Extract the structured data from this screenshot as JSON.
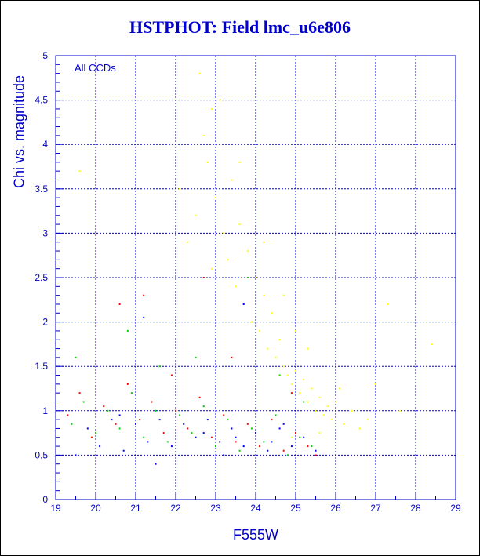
{
  "chart_data": {
    "type": "scatter",
    "title": "HSTPHOT: Field lmc_u6e806",
    "xlabel": "F555W",
    "ylabel": "Chi vs. magnitude",
    "annotation": "All CCDs",
    "xlim": [
      19,
      29
    ],
    "ylim": [
      0,
      5
    ],
    "x_ticks": [
      "19",
      "20",
      "21",
      "22",
      "23",
      "24",
      "25",
      "26",
      "27",
      "28",
      "29"
    ],
    "y_ticks": [
      "0",
      "0.5",
      "1",
      "1.5",
      "2",
      "2.5",
      "3",
      "3.5",
      "4",
      "4.5",
      "5"
    ],
    "grid": true,
    "colors": {
      "frame": "#0000cc",
      "ccd1_points": "#ffff00",
      "ccd2_points": "#ff0000",
      "ccd3_points": "#00cc00",
      "ccd4_points": "#0000ff"
    },
    "series": [
      {
        "color": "#ffff00",
        "values": [
          {
            "x": 22.1,
            "y": 3.5
          },
          {
            "x": 22.3,
            "y": 2.9
          },
          {
            "x": 22.5,
            "y": 3.2
          },
          {
            "x": 22.6,
            "y": 4.8
          },
          {
            "x": 22.7,
            "y": 4.1
          },
          {
            "x": 22.8,
            "y": 3.8
          },
          {
            "x": 22.9,
            "y": 2.6
          },
          {
            "x": 23.0,
            "y": 3.4
          },
          {
            "x": 23.1,
            "y": 4.5
          },
          {
            "x": 23.2,
            "y": 3.0
          },
          {
            "x": 23.3,
            "y": 2.7
          },
          {
            "x": 23.4,
            "y": 3.6
          },
          {
            "x": 23.5,
            "y": 2.4
          },
          {
            "x": 23.6,
            "y": 3.1
          },
          {
            "x": 23.7,
            "y": 2.2
          },
          {
            "x": 23.8,
            "y": 2.8
          },
          {
            "x": 23.9,
            "y": 2.0
          },
          {
            "x": 24.0,
            "y": 2.5
          },
          {
            "x": 24.1,
            "y": 1.9
          },
          {
            "x": 24.2,
            "y": 2.3
          },
          {
            "x": 24.3,
            "y": 1.7
          },
          {
            "x": 24.4,
            "y": 2.1
          },
          {
            "x": 24.5,
            "y": 1.6
          },
          {
            "x": 24.6,
            "y": 1.8
          },
          {
            "x": 24.7,
            "y": 1.5
          },
          {
            "x": 24.8,
            "y": 1.4
          },
          {
            "x": 24.9,
            "y": 1.3
          },
          {
            "x": 25.0,
            "y": 1.45
          },
          {
            "x": 25.1,
            "y": 1.2
          },
          {
            "x": 25.2,
            "y": 1.35
          },
          {
            "x": 25.3,
            "y": 1.1
          },
          {
            "x": 25.4,
            "y": 1.25
          },
          {
            "x": 25.5,
            "y": 1.0
          },
          {
            "x": 25.6,
            "y": 1.15
          },
          {
            "x": 25.7,
            "y": 0.95
          },
          {
            "x": 25.8,
            "y": 1.05
          },
          {
            "x": 25.9,
            "y": 0.9
          },
          {
            "x": 26.0,
            "y": 1.1
          },
          {
            "x": 26.2,
            "y": 0.85
          },
          {
            "x": 26.4,
            "y": 1.0
          },
          {
            "x": 26.6,
            "y": 0.8
          },
          {
            "x": 26.8,
            "y": 0.9
          },
          {
            "x": 27.0,
            "y": 1.3
          },
          {
            "x": 27.3,
            "y": 2.2
          },
          {
            "x": 27.6,
            "y": 1.0
          },
          {
            "x": 24.2,
            "y": 2.9
          },
          {
            "x": 23.6,
            "y": 3.8
          },
          {
            "x": 22.9,
            "y": 4.4
          },
          {
            "x": 24.7,
            "y": 2.3
          },
          {
            "x": 25.3,
            "y": 1.7
          },
          {
            "x": 19.6,
            "y": 3.7
          },
          {
            "x": 28.4,
            "y": 1.75
          },
          {
            "x": 25.6,
            "y": 0.75
          },
          {
            "x": 24.9,
            "y": 0.7
          },
          {
            "x": 26.1,
            "y": 1.25
          },
          {
            "x": 25.0,
            "y": 1.9
          }
        ]
      },
      {
        "color": "#ff0000",
        "values": [
          {
            "x": 19.3,
            "y": 0.95
          },
          {
            "x": 19.6,
            "y": 1.2
          },
          {
            "x": 19.9,
            "y": 0.7
          },
          {
            "x": 20.2,
            "y": 1.05
          },
          {
            "x": 20.5,
            "y": 0.85
          },
          {
            "x": 20.8,
            "y": 1.3
          },
          {
            "x": 21.1,
            "y": 0.9
          },
          {
            "x": 21.4,
            "y": 1.1
          },
          {
            "x": 21.7,
            "y": 0.75
          },
          {
            "x": 22.0,
            "y": 1.0
          },
          {
            "x": 22.3,
            "y": 0.8
          },
          {
            "x": 22.6,
            "y": 1.15
          },
          {
            "x": 22.9,
            "y": 0.7
          },
          {
            "x": 23.2,
            "y": 0.95
          },
          {
            "x": 23.5,
            "y": 0.65
          },
          {
            "x": 23.8,
            "y": 0.85
          },
          {
            "x": 24.1,
            "y": 0.6
          },
          {
            "x": 24.4,
            "y": 0.9
          },
          {
            "x": 24.7,
            "y": 0.55
          },
          {
            "x": 25.0,
            "y": 0.75
          },
          {
            "x": 25.3,
            "y": 0.6
          },
          {
            "x": 25.5,
            "y": 0.5
          },
          {
            "x": 20.6,
            "y": 2.2
          },
          {
            "x": 21.2,
            "y": 2.3
          },
          {
            "x": 22.7,
            "y": 2.5
          },
          {
            "x": 23.4,
            "y": 1.6
          },
          {
            "x": 21.9,
            "y": 1.4
          },
          {
            "x": 24.9,
            "y": 1.2
          }
        ]
      },
      {
        "color": "#00cc00",
        "values": [
          {
            "x": 19.4,
            "y": 0.85
          },
          {
            "x": 19.7,
            "y": 1.1
          },
          {
            "x": 20.0,
            "y": 0.75
          },
          {
            "x": 20.3,
            "y": 1.0
          },
          {
            "x": 20.6,
            "y": 0.8
          },
          {
            "x": 20.9,
            "y": 1.2
          },
          {
            "x": 21.2,
            "y": 0.7
          },
          {
            "x": 21.5,
            "y": 1.0
          },
          {
            "x": 21.8,
            "y": 0.65
          },
          {
            "x": 22.1,
            "y": 0.95
          },
          {
            "x": 22.4,
            "y": 0.75
          },
          {
            "x": 22.7,
            "y": 1.05
          },
          {
            "x": 23.0,
            "y": 0.6
          },
          {
            "x": 23.3,
            "y": 0.9
          },
          {
            "x": 23.6,
            "y": 0.55
          },
          {
            "x": 23.9,
            "y": 0.8
          },
          {
            "x": 24.2,
            "y": 0.65
          },
          {
            "x": 24.5,
            "y": 0.95
          },
          {
            "x": 24.8,
            "y": 0.5
          },
          {
            "x": 25.1,
            "y": 0.7
          },
          {
            "x": 25.4,
            "y": 0.6
          },
          {
            "x": 19.5,
            "y": 1.6
          },
          {
            "x": 20.8,
            "y": 1.9
          },
          {
            "x": 22.5,
            "y": 1.6
          },
          {
            "x": 23.8,
            "y": 2.5
          },
          {
            "x": 24.6,
            "y": 1.4
          },
          {
            "x": 21.6,
            "y": 1.5
          },
          {
            "x": 25.2,
            "y": 1.1
          }
        ]
      },
      {
        "color": "#0000ff",
        "values": [
          {
            "x": 19.5,
            "y": 0.5
          },
          {
            "x": 19.8,
            "y": 0.8
          },
          {
            "x": 20.1,
            "y": 0.6
          },
          {
            "x": 20.4,
            "y": 0.9
          },
          {
            "x": 20.7,
            "y": 0.55
          },
          {
            "x": 21.0,
            "y": 0.85
          },
          {
            "x": 21.3,
            "y": 0.65
          },
          {
            "x": 21.6,
            "y": 0.9
          },
          {
            "x": 21.9,
            "y": 0.6
          },
          {
            "x": 22.2,
            "y": 0.85
          },
          {
            "x": 22.5,
            "y": 0.7
          },
          {
            "x": 22.8,
            "y": 0.9
          },
          {
            "x": 23.1,
            "y": 0.65
          },
          {
            "x": 23.4,
            "y": 0.8
          },
          {
            "x": 23.7,
            "y": 0.6
          },
          {
            "x": 24.0,
            "y": 0.75
          },
          {
            "x": 24.3,
            "y": 0.55
          },
          {
            "x": 24.6,
            "y": 0.8
          },
          {
            "x": 24.9,
            "y": 0.6
          },
          {
            "x": 25.2,
            "y": 0.7
          },
          {
            "x": 25.5,
            "y": 0.55
          },
          {
            "x": 22.7,
            "y": 0.75
          },
          {
            "x": 23.5,
            "y": 0.7
          },
          {
            "x": 24.4,
            "y": 0.65
          },
          {
            "x": 20.6,
            "y": 0.95
          },
          {
            "x": 21.5,
            "y": 0.4
          },
          {
            "x": 23.2,
            "y": 0.5
          },
          {
            "x": 24.7,
            "y": 0.85
          },
          {
            "x": 21.2,
            "y": 2.05
          },
          {
            "x": 23.7,
            "y": 2.2
          }
        ]
      }
    ]
  }
}
